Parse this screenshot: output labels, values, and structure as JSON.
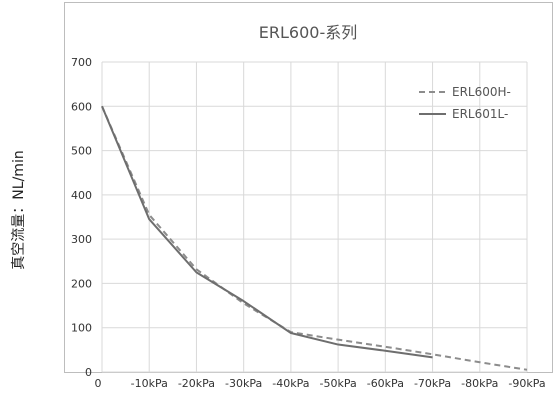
{
  "chart_data": {
    "type": "line",
    "title": "ERL600-系列",
    "xlabel": "",
    "ylabel": "真空流量：NL/min",
    "categories": [
      "0",
      "-10kPa",
      "-20kPa",
      "-30kPa",
      "-40kPa",
      "-50kPa",
      "-60kPa",
      "-70kPa",
      "-80kPa",
      "-90kPa"
    ],
    "ylim": [
      0,
      700
    ],
    "yticks": [
      "0",
      "100",
      "200",
      "300",
      "400",
      "500",
      "600",
      "700"
    ],
    "grid": true,
    "legend_position": "top-right",
    "series": [
      {
        "name": "ERL600H-",
        "style": "dashed",
        "color": "#8c8c8c",
        "values": [
          600,
          355,
          232,
          155,
          90,
          73,
          57,
          40,
          22,
          5
        ]
      },
      {
        "name": "ERL601L-",
        "style": "solid",
        "color": "#6e6e6e",
        "values": [
          600,
          345,
          225,
          160,
          88,
          62,
          48,
          33,
          null,
          null
        ]
      }
    ]
  }
}
